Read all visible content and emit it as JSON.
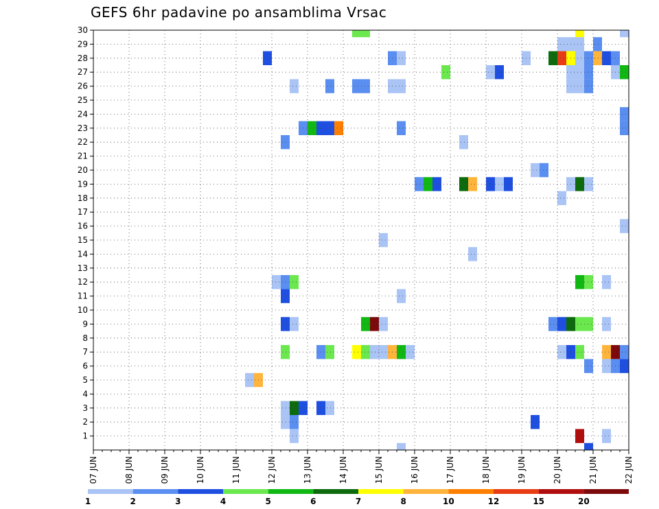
{
  "chart_data": {
    "type": "heatmap",
    "title": "GEFS 6hr padavine po ansamblima Vrsac",
    "x": {
      "ticks": [
        "07 JUN",
        "08 JUN",
        "09 JUN",
        "10 JUN",
        "11 JUN",
        "12 JUN",
        "13 JUN",
        "14 JUN",
        "15 JUN",
        "16 JUN",
        "17 JUN",
        "18 JUN",
        "19 JUN",
        "20 JUN",
        "21 JUN",
        "22 JUN"
      ],
      "range_days": [
        7,
        22
      ],
      "step_hours": 6
    },
    "y": {
      "ticks": [
        "1",
        "2",
        "3",
        "4",
        "5",
        "6",
        "7",
        "8",
        "9",
        "10",
        "11",
        "12",
        "13",
        "14",
        "15",
        "16",
        "17",
        "18",
        "19",
        "20",
        "21",
        "22",
        "23",
        "24",
        "25",
        "26",
        "27",
        "28",
        "29",
        "30"
      ],
      "range": [
        0,
        30
      ]
    },
    "grid": true,
    "legend": {
      "position": "bottom",
      "labels": [
        "1",
        "2",
        "3",
        "4",
        "5",
        "6",
        "7",
        "8",
        "10",
        "12",
        "15",
        "20"
      ],
      "colors": [
        "#a9c4f5",
        "#5a8ef0",
        "#1f4fe0",
        "#6ae84e",
        "#11b814",
        "#0d6b0d",
        "#ffff00",
        "#ffb43c",
        "#ff7f00",
        "#e83c14",
        "#b00d0d",
        "#7d0a0a"
      ]
    },
    "cells": [
      {
        "member": 30,
        "day": 14.25,
        "span": 2,
        "level": 4
      },
      {
        "member": 30,
        "day": 20.5,
        "level": 7
      },
      {
        "member": 30,
        "day": 21.75,
        "level": 1
      },
      {
        "member": 29,
        "day": 20.0,
        "span": 3,
        "level": 1
      },
      {
        "member": 29,
        "day": 21.0,
        "level": 2
      },
      {
        "member": 28,
        "day": 11.75,
        "level": 3
      },
      {
        "member": 28,
        "day": 15.25,
        "level": 2
      },
      {
        "member": 28,
        "day": 15.5,
        "level": 1
      },
      {
        "member": 28,
        "day": 19.0,
        "level": 1
      },
      {
        "member": 28,
        "day": 19.75,
        "level": 6
      },
      {
        "member": 28,
        "day": 20.0,
        "level": 12
      },
      {
        "member": 28,
        "day": 20.25,
        "level": 7
      },
      {
        "member": 28,
        "day": 20.5,
        "level": 1
      },
      {
        "member": 28,
        "day": 20.75,
        "level": 2
      },
      {
        "member": 28,
        "day": 21.0,
        "level": 8
      },
      {
        "member": 28,
        "day": 21.25,
        "level": 3
      },
      {
        "member": 28,
        "day": 21.5,
        "level": 2
      },
      {
        "member": 27,
        "day": 16.75,
        "level": 4
      },
      {
        "member": 27,
        "day": 18.0,
        "level": 1
      },
      {
        "member": 27,
        "day": 18.25,
        "level": 3
      },
      {
        "member": 27,
        "day": 20.25,
        "span": 2,
        "level": 1
      },
      {
        "member": 27,
        "day": 20.75,
        "level": 2
      },
      {
        "member": 27,
        "day": 21.5,
        "level": 1
      },
      {
        "member": 27,
        "day": 21.75,
        "level": 5
      },
      {
        "member": 26,
        "day": 12.5,
        "level": 1
      },
      {
        "member": 26,
        "day": 13.5,
        "level": 2
      },
      {
        "member": 26,
        "day": 14.25,
        "span": 2,
        "level": 2
      },
      {
        "member": 26,
        "day": 15.25,
        "span": 2,
        "level": 1
      },
      {
        "member": 26,
        "day": 20.25,
        "span": 2,
        "level": 1
      },
      {
        "member": 26,
        "day": 20.75,
        "level": 2
      },
      {
        "member": 24,
        "day": 21.75,
        "level": 2
      },
      {
        "member": 23,
        "day": 12.75,
        "level": 2
      },
      {
        "member": 23,
        "day": 13.0,
        "level": 5
      },
      {
        "member": 23,
        "day": 13.25,
        "span": 2,
        "level": 3
      },
      {
        "member": 23,
        "day": 13.75,
        "level": 10
      },
      {
        "member": 23,
        "day": 15.5,
        "level": 2
      },
      {
        "member": 23,
        "day": 21.75,
        "level": 2
      },
      {
        "member": 22,
        "day": 12.25,
        "level": 2
      },
      {
        "member": 22,
        "day": 17.25,
        "level": 1
      },
      {
        "member": 20,
        "day": 19.5,
        "level": 1
      },
      {
        "member": 20,
        "day": 19.25,
        "level": 1
      },
      {
        "member": 20,
        "day": 19.5,
        "level": 2
      },
      {
        "member": 19,
        "day": 16.0,
        "level": 2
      },
      {
        "member": 19,
        "day": 16.25,
        "level": 5
      },
      {
        "member": 19,
        "day": 16.5,
        "level": 3
      },
      {
        "member": 19,
        "day": 17.25,
        "level": 6
      },
      {
        "member": 19,
        "day": 17.5,
        "level": 8
      },
      {
        "member": 19,
        "day": 18.0,
        "level": 3
      },
      {
        "member": 19,
        "day": 18.25,
        "level": 1
      },
      {
        "member": 19,
        "day": 18.5,
        "level": 3
      },
      {
        "member": 19,
        "day": 20.25,
        "level": 1
      },
      {
        "member": 19,
        "day": 20.5,
        "level": 6
      },
      {
        "member": 19,
        "day": 20.75,
        "level": 1
      },
      {
        "member": 18,
        "day": 20.0,
        "level": 1
      },
      {
        "member": 16,
        "day": 21.75,
        "level": 1
      },
      {
        "member": 15,
        "day": 15.0,
        "level": 1
      },
      {
        "member": 14,
        "day": 17.5,
        "level": 1
      },
      {
        "member": 12,
        "day": 12.0,
        "level": 1
      },
      {
        "member": 12,
        "day": 12.25,
        "level": 2
      },
      {
        "member": 12,
        "day": 12.5,
        "level": 4
      },
      {
        "member": 12,
        "day": 20.5,
        "level": 5
      },
      {
        "member": 12,
        "day": 20.75,
        "level": 4
      },
      {
        "member": 12,
        "day": 21.25,
        "level": 1
      },
      {
        "member": 11,
        "day": 12.25,
        "level": 3
      },
      {
        "member": 11,
        "day": 15.5,
        "level": 1
      },
      {
        "member": 9,
        "day": 12.25,
        "level": 3
      },
      {
        "member": 9,
        "day": 12.5,
        "level": 1
      },
      {
        "member": 9,
        "day": 14.5,
        "level": 5
      },
      {
        "member": 9,
        "day": 14.75,
        "level": 20
      },
      {
        "member": 9,
        "day": 15.0,
        "level": 1
      },
      {
        "member": 9,
        "day": 19.75,
        "level": 2
      },
      {
        "member": 9,
        "day": 20.0,
        "level": 3
      },
      {
        "member": 9,
        "day": 20.25,
        "level": 6
      },
      {
        "member": 9,
        "day": 20.5,
        "span": 2,
        "level": 4
      },
      {
        "member": 9,
        "day": 21.25,
        "level": 1
      },
      {
        "member": 7,
        "day": 12.25,
        "level": 4
      },
      {
        "member": 7,
        "day": 13.25,
        "level": 2
      },
      {
        "member": 7,
        "day": 13.5,
        "level": 4
      },
      {
        "member": 7,
        "day": 14.25,
        "level": 7
      },
      {
        "member": 7,
        "day": 14.5,
        "level": 4
      },
      {
        "member": 7,
        "day": 14.75,
        "span": 2,
        "level": 1
      },
      {
        "member": 7,
        "day": 15.25,
        "level": 8
      },
      {
        "member": 7,
        "day": 15.5,
        "level": 5
      },
      {
        "member": 7,
        "day": 15.75,
        "level": 1
      },
      {
        "member": 7,
        "day": 20.0,
        "level": 1
      },
      {
        "member": 7,
        "day": 20.25,
        "level": 3
      },
      {
        "member": 7,
        "day": 20.5,
        "level": 4
      },
      {
        "member": 7,
        "day": 21.25,
        "level": 8
      },
      {
        "member": 7,
        "day": 21.5,
        "level": 20
      },
      {
        "member": 7,
        "day": 21.75,
        "level": 2
      },
      {
        "member": 6,
        "day": 20.75,
        "level": 2
      },
      {
        "member": 6,
        "day": 21.25,
        "level": 1
      },
      {
        "member": 6,
        "day": 21.5,
        "level": 2
      },
      {
        "member": 6,
        "day": 21.75,
        "level": 3
      },
      {
        "member": 5,
        "day": 11.25,
        "level": 1
      },
      {
        "member": 5,
        "day": 11.5,
        "level": 8
      },
      {
        "member": 3,
        "day": 12.25,
        "level": 1
      },
      {
        "member": 3,
        "day": 12.5,
        "level": 6
      },
      {
        "member": 3,
        "day": 12.75,
        "level": 3
      },
      {
        "member": 3,
        "day": 13.25,
        "level": 3
      },
      {
        "member": 3,
        "day": 13.5,
        "level": 1
      },
      {
        "member": 2,
        "day": 12.25,
        "level": 1
      },
      {
        "member": 2,
        "day": 12.5,
        "level": 2
      },
      {
        "member": 2,
        "day": 19.25,
        "level": 3
      },
      {
        "member": 1,
        "day": 12.5,
        "level": 1
      },
      {
        "member": 1,
        "day": 20.5,
        "level": 15
      },
      {
        "member": 1,
        "day": 21.25,
        "level": 1
      },
      {
        "member": 0,
        "day": 15.5,
        "level": 1
      },
      {
        "member": 0,
        "day": 20.75,
        "level": 3
      }
    ]
  }
}
